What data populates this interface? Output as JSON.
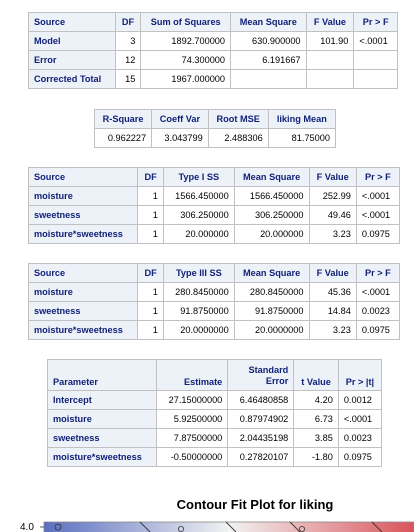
{
  "anova": {
    "headers": [
      "Source",
      "DF",
      "Sum of Squares",
      "Mean Square",
      "F Value",
      "Pr > F"
    ],
    "rows": [
      [
        "Model",
        "3",
        "1892.700000",
        "630.900000",
        "101.90",
        "<.0001"
      ],
      [
        "Error",
        "12",
        "74.300000",
        "6.191667",
        "",
        ""
      ],
      [
        "Corrected Total",
        "15",
        "1967.000000",
        "",
        "",
        ""
      ]
    ]
  },
  "fit": {
    "headers": [
      "R-Square",
      "Coeff Var",
      "Root MSE",
      "liking Mean"
    ],
    "values": [
      "0.962227",
      "3.043799",
      "2.488306",
      "81.75000"
    ]
  },
  "type1": {
    "headers": [
      "Source",
      "DF",
      "Type I SS",
      "Mean Square",
      "F Value",
      "Pr > F"
    ],
    "rows": [
      [
        "moisture",
        "1",
        "1566.450000",
        "1566.450000",
        "252.99",
        "<.0001"
      ],
      [
        "sweetness",
        "1",
        "306.250000",
        "306.250000",
        "49.46",
        "<.0001"
      ],
      [
        "moisture*sweetness",
        "1",
        "20.000000",
        "20.000000",
        "3.23",
        "0.0975"
      ]
    ]
  },
  "type3": {
    "headers": [
      "Source",
      "DF",
      "Type III SS",
      "Mean Square",
      "F Value",
      "Pr > F"
    ],
    "rows": [
      [
        "moisture",
        "1",
        "280.8450000",
        "280.8450000",
        "45.36",
        "<.0001"
      ],
      [
        "sweetness",
        "1",
        "91.8750000",
        "91.8750000",
        "14.84",
        "0.0023"
      ],
      [
        "moisture*sweetness",
        "1",
        "20.0000000",
        "20.0000000",
        "3.23",
        "0.0975"
      ]
    ]
  },
  "params": {
    "headers": [
      "Parameter",
      "Estimate",
      "Standard Error",
      "t Value",
      "Pr > |t|"
    ],
    "rows": [
      [
        "Intercept",
        "27.15000000",
        "6.46480858",
        "4.20",
        "0.0012"
      ],
      [
        "moisture",
        "5.92500000",
        "0.87974902",
        "6.73",
        "<.0001"
      ],
      [
        "sweetness",
        "7.87500000",
        "2.04435198",
        "3.85",
        "0.0023"
      ],
      [
        "moisture*sweetness",
        "-0.50000000",
        "0.27820107",
        "-1.80",
        "0.0975"
      ]
    ]
  },
  "contour": {
    "title": "Contour Fit Plot for liking",
    "ytick_top": "4.0",
    "colors": {
      "low": "#5a6fc0",
      "mid": "#f2f2f2",
      "high": "#d9545a"
    }
  }
}
